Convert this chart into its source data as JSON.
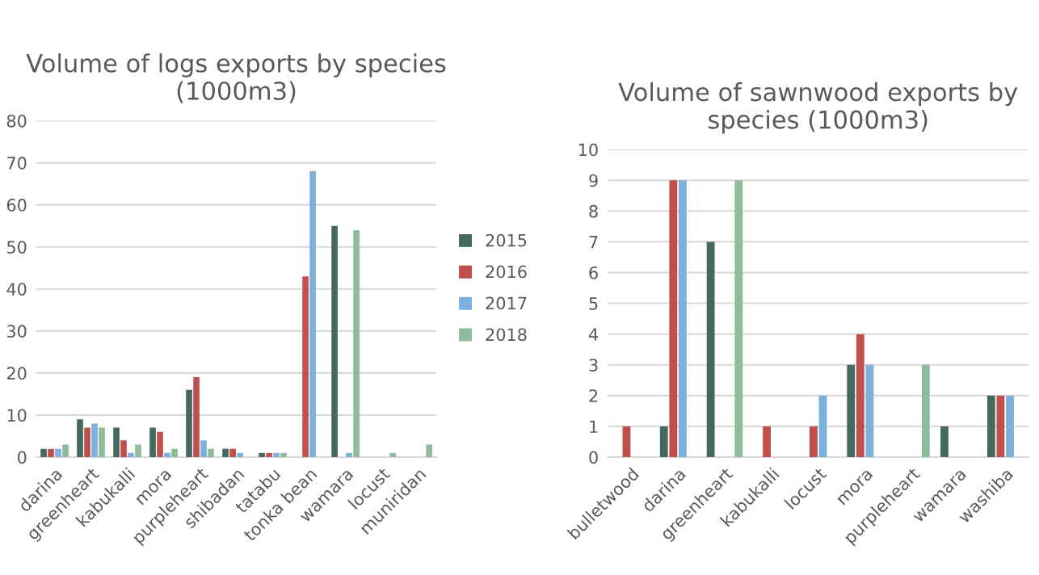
{
  "chart_data": [
    {
      "type": "bar",
      "title": "Volume of logs exports by species (1000m3)",
      "categories": [
        "darina",
        "greenheart",
        "kabukalli",
        "mora",
        "purpleheart",
        "shibadan",
        "tatabu",
        "tonka bean",
        "wamara",
        "locust",
        "muniridan"
      ],
      "series": [
        {
          "name": "2015",
          "color": "#46695f",
          "values": [
            2,
            9,
            7,
            7,
            16,
            2,
            1,
            null,
            55,
            null,
            null
          ]
        },
        {
          "name": "2016",
          "color": "#c0504d",
          "values": [
            2,
            7,
            4,
            6,
            19,
            2,
            1,
            43,
            null,
            null,
            null
          ]
        },
        {
          "name": "2017",
          "color": "#7eb0dc",
          "values": [
            2,
            8,
            1,
            1,
            4,
            1,
            1,
            68,
            1,
            null,
            null
          ]
        },
        {
          "name": "2018",
          "color": "#8ebc9a",
          "values": [
            3,
            7,
            3,
            2,
            2,
            null,
            1,
            null,
            54,
            1,
            3
          ]
        }
      ],
      "ylim": [
        0,
        80
      ],
      "yticks": [
        0,
        10,
        20,
        30,
        40,
        50,
        60,
        70,
        80
      ],
      "grid": "y",
      "legend": "right"
    },
    {
      "type": "bar",
      "title": "Volume of sawnwood exports by species (1000m3)",
      "categories": [
        "bulletwood",
        "darina",
        "greenheart",
        "kabukalli",
        "locust",
        "mora",
        "purpleheart",
        "wamara",
        "washiba"
      ],
      "series": [
        {
          "color": "#46695f",
          "values": [
            null,
            1,
            7,
            null,
            null,
            3,
            null,
            1,
            2
          ]
        },
        {
          "color": "#c0504d",
          "values": [
            1,
            9,
            null,
            1,
            1,
            4,
            null,
            null,
            2
          ]
        },
        {
          "color": "#7eb0dc",
          "values": [
            null,
            9,
            null,
            null,
            2,
            3,
            null,
            null,
            2
          ]
        },
        {
          "color": "#8ebc9a",
          "values": [
            null,
            null,
            9,
            null,
            null,
            null,
            3,
            null,
            null
          ]
        }
      ],
      "ylim": [
        0,
        10
      ],
      "yticks": [
        0,
        1,
        2,
        3,
        4,
        5,
        6,
        7,
        8,
        9,
        10
      ],
      "grid": "y",
      "legend": false
    }
  ]
}
